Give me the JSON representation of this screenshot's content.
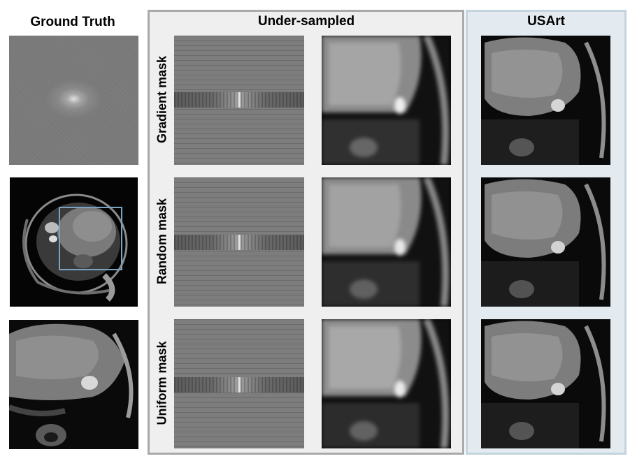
{
  "columns": {
    "ground_truth": "Ground Truth",
    "under_sampled": "Under-sampled",
    "usart": "USArt"
  },
  "rows": {
    "gradient": "Gradient mask",
    "random": "Random mask",
    "uniform": "Uniform mask"
  },
  "colors": {
    "under_sampled_panel": "#efefef",
    "usart_panel": "#e4ebf0",
    "zoom_box": "#7ba3c2"
  }
}
